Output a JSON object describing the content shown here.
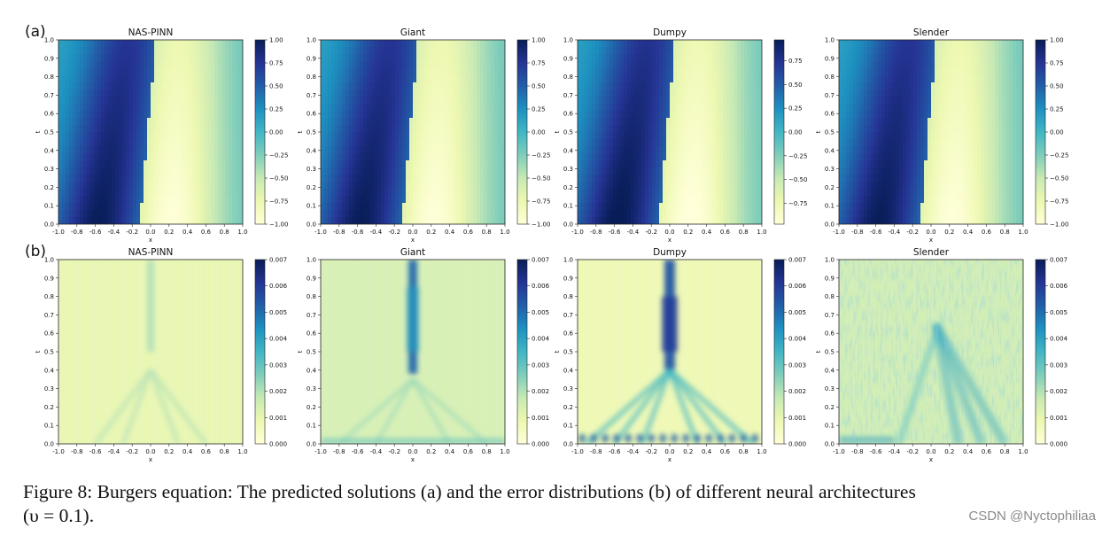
{
  "chart_data": {
    "type": "heatmap",
    "x_ticks": [
      "-1.0",
      "-0.8",
      "-0.6",
      "-0.4",
      "-0.2",
      "0.0",
      "0.2",
      "0.4",
      "0.6",
      "0.8",
      "1.0"
    ],
    "t_ticks": [
      "0.0",
      "0.1",
      "0.2",
      "0.3",
      "0.4",
      "0.5",
      "0.6",
      "0.7",
      "0.8",
      "0.9",
      "1.0"
    ],
    "xlabel": "x",
    "ylabel": "t",
    "xlim": [
      -1.0,
      1.0
    ],
    "tlim": [
      0.0,
      1.0
    ],
    "rows": [
      {
        "label": "(a)",
        "kind": "solution",
        "panels": [
          {
            "title": "NAS-PINN",
            "clim": [
              -1.0,
              1.0
            ],
            "colorbar_ticks": [
              "1.00",
              "0.75",
              "0.50",
              "0.25",
              "0.00",
              "−0.25",
              "−0.50",
              "−0.75",
              "−1.00"
            ],
            "colorbar_values": [
              1.0,
              0.75,
              0.5,
              0.25,
              0.0,
              -0.25,
              -0.5,
              -0.75,
              -1.0
            ]
          },
          {
            "title": "Giant",
            "clim": [
              -1.0,
              1.0
            ],
            "colorbar_ticks": [
              "1.00",
              "0.75",
              "0.50",
              "0.25",
              "0.00",
              "−0.25",
              "−0.50",
              "−0.75",
              "−1.00"
            ],
            "colorbar_values": [
              1.0,
              0.75,
              0.5,
              0.25,
              0.0,
              -0.25,
              -0.5,
              -0.75,
              -1.0
            ]
          },
          {
            "title": "Dumpy",
            "clim": [
              -0.97,
              0.97
            ],
            "colorbar_ticks": [
              "0.75",
              "0.50",
              "0.25",
              "0.00",
              "−0.25",
              "−0.50",
              "−0.75"
            ],
            "colorbar_values": [
              0.75,
              0.5,
              0.25,
              0.0,
              -0.25,
              -0.5,
              -0.75
            ]
          },
          {
            "title": "Slender",
            "clim": [
              -1.0,
              1.0
            ],
            "colorbar_ticks": [
              "1.00",
              "0.75",
              "0.50",
              "0.25",
              "0.00",
              "−0.25",
              "−0.50",
              "−0.75",
              "−1.00"
            ],
            "colorbar_values": [
              1.0,
              0.75,
              0.5,
              0.25,
              0.0,
              -0.25,
              -0.5,
              -0.75,
              -1.0
            ]
          }
        ]
      },
      {
        "label": "(b)",
        "kind": "error",
        "panels": [
          {
            "title": "NAS-PINN",
            "clim": [
              0.0,
              0.007
            ],
            "colorbar_ticks": [
              "0.007",
              "0.006",
              "0.005",
              "0.004",
              "0.003",
              "0.002",
              "0.001",
              "0.000"
            ],
            "colorbar_values": [
              0.007,
              0.006,
              0.005,
              0.004,
              0.003,
              0.002,
              0.001,
              0.0
            ]
          },
          {
            "title": "Giant",
            "clim": [
              0.0,
              0.007
            ],
            "colorbar_ticks": [
              "0.007",
              "0.006",
              "0.005",
              "0.004",
              "0.003",
              "0.002",
              "0.001",
              "0.000"
            ],
            "colorbar_values": [
              0.007,
              0.006,
              0.005,
              0.004,
              0.003,
              0.002,
              0.001,
              0.0
            ]
          },
          {
            "title": "Dumpy",
            "clim": [
              0.0,
              0.007
            ],
            "colorbar_ticks": [
              "0.007",
              "0.006",
              "0.005",
              "0.004",
              "0.003",
              "0.002",
              "0.001",
              "0.000"
            ],
            "colorbar_values": [
              0.007,
              0.006,
              0.005,
              0.004,
              0.003,
              0.002,
              0.001,
              0.0
            ]
          },
          {
            "title": "Slender",
            "clim": [
              0.0,
              0.007
            ],
            "colorbar_ticks": [
              "0.007",
              "0.006",
              "0.005",
              "0.004",
              "0.003",
              "0.002",
              "0.001",
              "0.000"
            ],
            "colorbar_values": [
              0.007,
              0.006,
              0.005,
              0.004,
              0.003,
              0.002,
              0.001,
              0.0
            ]
          }
        ]
      }
    ],
    "colormap": "YlGnBu",
    "colormap_stops": [
      "#ffffd9",
      "#edf8b1",
      "#c7e9b4",
      "#7fcdbb",
      "#41b6c4",
      "#1d91c0",
      "#225ea8",
      "#253494",
      "#081d58"
    ]
  },
  "caption": {
    "line1": "Figure 8: Burgers equation: The predicted solutions (a) and the error distributions (b) of different neural architectures",
    "line2": "(υ = 0.1)."
  },
  "watermark": "CSDN @Nyctophiliaa"
}
